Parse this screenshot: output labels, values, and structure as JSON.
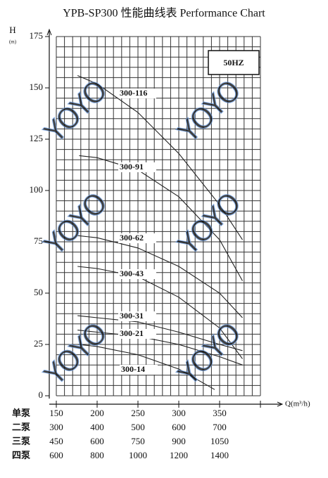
{
  "chart_data": {
    "type": "line",
    "title": "YPB-SP300 性能曲线表 Performance Chart",
    "y_label": "H",
    "y_unit": "(m)",
    "x_label": "Q(m³/h)",
    "annotation": "50HZ",
    "watermark": "YOYO",
    "xlim": [
      150,
      400
    ],
    "xticks": [
      150,
      200,
      250,
      300,
      350
    ],
    "ylim": [
      0,
      175
    ],
    "yticks": [
      0,
      25,
      50,
      75,
      100,
      125,
      150,
      175
    ],
    "grid": true,
    "series": [
      {
        "name": "300-116",
        "color": "#222222",
        "x": [
          176,
          200,
          250,
          300,
          350,
          378
        ],
        "values": [
          156,
          152,
          138,
          118,
          93,
          76
        ]
      },
      {
        "name": "300-91",
        "color": "#222222",
        "x": [
          178,
          200,
          250,
          300,
          350,
          378
        ],
        "values": [
          117,
          116,
          110,
          97,
          76,
          56
        ]
      },
      {
        "name": "300-62",
        "color": "#222222",
        "x": [
          176,
          200,
          250,
          300,
          350,
          378
        ],
        "values": [
          78,
          77,
          72,
          63,
          50,
          38
        ]
      },
      {
        "name": "300-43",
        "color": "#222222",
        "x": [
          176,
          200,
          250,
          300,
          350,
          378
        ],
        "values": [
          63,
          62,
          58,
          48,
          33,
          18
        ]
      },
      {
        "name": "300-31",
        "color": "#222222",
        "x": [
          176,
          200,
          250,
          300,
          350,
          378
        ],
        "values": [
          39,
          38,
          36,
          31,
          25,
          22
        ]
      },
      {
        "name": "300-21",
        "color": "#222222",
        "x": [
          176,
          200,
          250,
          300,
          350,
          378
        ],
        "values": [
          32,
          31,
          29,
          25,
          19,
          15
        ]
      },
      {
        "name": "300-14",
        "color": "#222222",
        "x": [
          176,
          200,
          250,
          300,
          344
        ],
        "values": [
          25,
          24,
          20,
          13,
          3
        ]
      }
    ],
    "flow_table": {
      "first_row_label": "单泵",
      "rows": [
        {
          "label": "二泵",
          "values": [
            300,
            400,
            500,
            600,
            700
          ]
        },
        {
          "label": "三泵",
          "values": [
            450,
            600,
            750,
            900,
            1050
          ]
        },
        {
          "label": "四泵",
          "values": [
            600,
            800,
            1000,
            1200,
            1400
          ]
        }
      ]
    }
  }
}
